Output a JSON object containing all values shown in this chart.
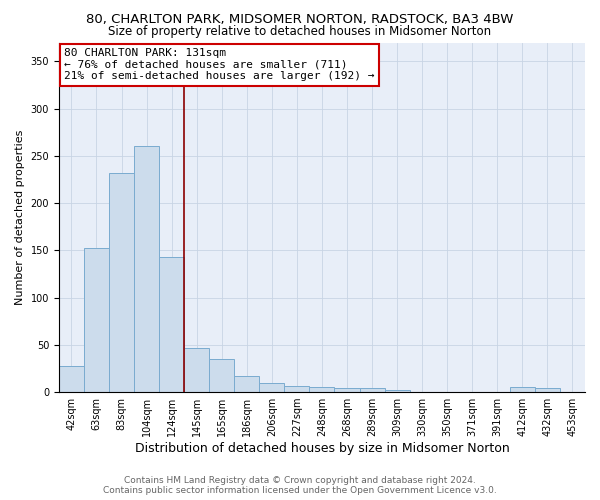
{
  "title1": "80, CHARLTON PARK, MIDSOMER NORTON, RADSTOCK, BA3 4BW",
  "title2": "Size of property relative to detached houses in Midsomer Norton",
  "xlabel": "Distribution of detached houses by size in Midsomer Norton",
  "ylabel": "Number of detached properties",
  "footer1": "Contains HM Land Registry data © Crown copyright and database right 2024.",
  "footer2": "Contains public sector information licensed under the Open Government Licence v3.0.",
  "bar_labels": [
    "42sqm",
    "63sqm",
    "83sqm",
    "104sqm",
    "124sqm",
    "145sqm",
    "165sqm",
    "186sqm",
    "206sqm",
    "227sqm",
    "248sqm",
    "268sqm",
    "289sqm",
    "309sqm",
    "330sqm",
    "350sqm",
    "371sqm",
    "391sqm",
    "412sqm",
    "432sqm",
    "453sqm"
  ],
  "bar_values": [
    28,
    153,
    232,
    260,
    143,
    47,
    35,
    17,
    10,
    6,
    5,
    4,
    4,
    2,
    0,
    0,
    0,
    0,
    5,
    4,
    0
  ],
  "bar_color": "#ccdcec",
  "bar_edge_color": "#7aabcf",
  "vline_x": 4.5,
  "vline_color": "#8b0000",
  "annotation_text": "80 CHARLTON PARK: 131sqm\n← 76% of detached houses are smaller (711)\n21% of semi-detached houses are larger (192) →",
  "annotation_box_color": "white",
  "annotation_box_edge_color": "#cc0000",
  "ylim": [
    0,
    370
  ],
  "yticks": [
    0,
    50,
    100,
    150,
    200,
    250,
    300,
    350
  ],
  "grid_color": "#c8d4e4",
  "background_color": "#e8eef8",
  "title1_fontsize": 9.5,
  "title2_fontsize": 8.5,
  "xlabel_fontsize": 9,
  "ylabel_fontsize": 8,
  "tick_fontsize": 7,
  "footer_fontsize": 6.5,
  "annotation_fontsize": 8
}
